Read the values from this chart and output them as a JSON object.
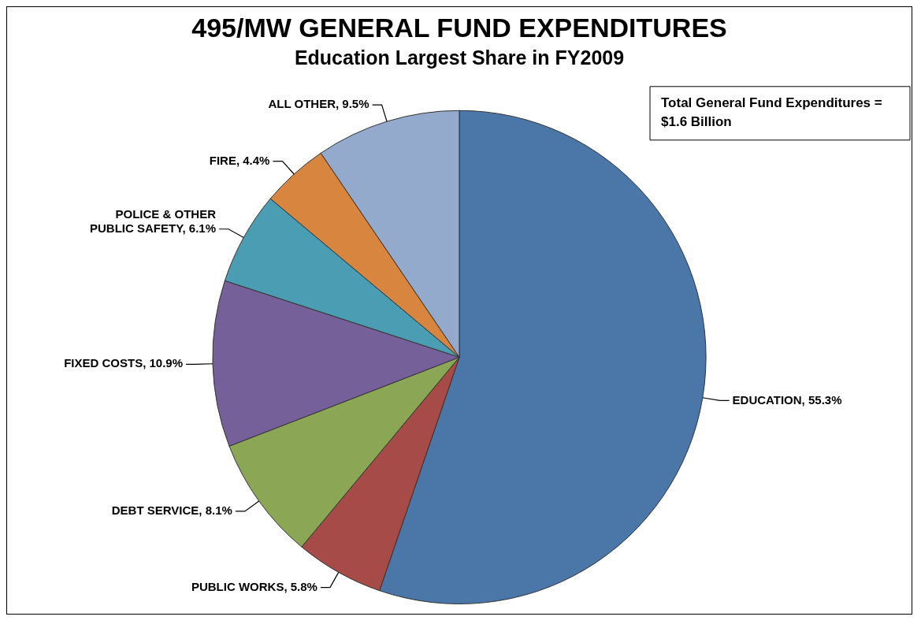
{
  "chart_data": {
    "type": "pie",
    "title": "495/MW GENERAL FUND EXPENDITURES",
    "subtitle": "Education Largest Share in FY2009",
    "categories": [
      "EDUCATION",
      "PUBLIC WORKS",
      "DEBT SERVICE",
      "FIXED COSTS",
      "POLICE & OTHER PUBLIC SAFETY",
      "FIRE",
      "ALL OTHER"
    ],
    "values": [
      55.3,
      5.8,
      8.1,
      10.9,
      6.1,
      4.4,
      9.5
    ],
    "colors": [
      "#4a76a8",
      "#a64b48",
      "#8ba756",
      "#76609a",
      "#4a9db2",
      "#d8853f",
      "#94aacd"
    ],
    "value_labels": [
      "55.3%",
      "5.8%",
      "8.1%",
      "10.9%",
      "6.1%",
      "4.4%",
      "9.5%"
    ],
    "annotations": [
      "Total General Fund Expenditures = $1.6 Billion"
    ],
    "legend": false
  }
}
